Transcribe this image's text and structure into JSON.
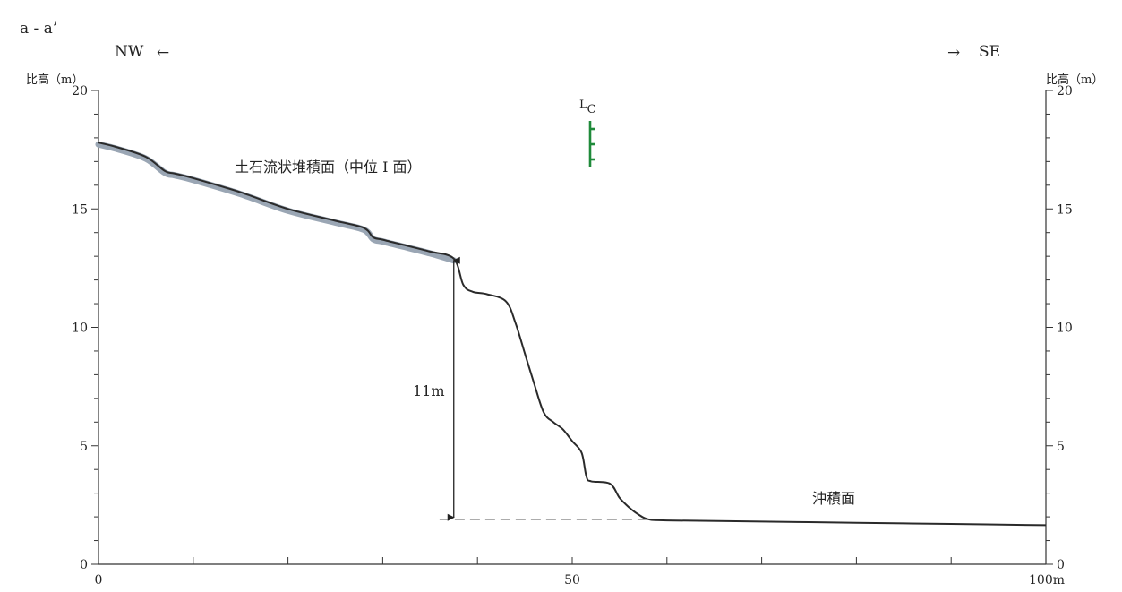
{
  "section_label": "a - a’",
  "direction": {
    "left": "NW",
    "right": "SE",
    "left_arrow": "←",
    "right_arrow": "→"
  },
  "axes": {
    "y_unit_left": "比高（m）",
    "y_unit_right": "比高（m）",
    "y_range": [
      0,
      20
    ],
    "y_ticks": [
      0,
      5,
      10,
      15,
      20
    ],
    "x_range": [
      0,
      100
    ],
    "x_tick_labels": [
      {
        "value": 0,
        "label": "0"
      },
      {
        "value": 50,
        "label": "50"
      },
      {
        "value": 100,
        "label": "100m"
      }
    ]
  },
  "labels": {
    "upper_surface": "土石流状堆積面（中位 I 面）",
    "lower_surface": "沖積面",
    "height_difference": "11m",
    "scarp_symbol": "Lc"
  },
  "colors": {
    "profile": "#2a2a2a",
    "upper_surface_band": "#9aa6b4",
    "scarp_marker": "#1f8a3a"
  },
  "chart_data": {
    "type": "line",
    "xlabel": "",
    "ylabel": "比高（m）",
    "xlim": [
      0,
      100
    ],
    "ylim": [
      0,
      20
    ],
    "grid": false,
    "x": [
      0,
      2,
      5,
      7,
      8,
      10,
      15,
      20,
      25,
      28,
      29,
      30,
      32,
      35,
      37.5,
      38.5,
      39.5,
      41,
      43,
      44,
      45,
      46,
      47,
      48,
      49,
      50,
      51,
      51.5,
      52,
      54,
      55,
      56,
      57,
      58,
      60,
      70,
      80,
      90,
      100
    ],
    "series": [
      {
        "values": [
          17.8,
          17.6,
          17.2,
          16.6,
          16.5,
          16.3,
          15.7,
          15.0,
          14.5,
          14.2,
          13.8,
          13.7,
          13.5,
          13.2,
          12.9,
          11.8,
          11.5,
          11.4,
          11.1,
          10.2,
          8.9,
          7.6,
          6.4,
          6.0,
          5.7,
          5.2,
          4.7,
          3.7,
          3.5,
          3.4,
          2.8,
          2.4,
          2.1,
          1.9,
          1.85,
          1.8,
          1.75,
          1.7,
          1.65
        ]
      }
    ],
    "annotations": [
      {
        "type": "dimension",
        "x": 37.5,
        "y_from": 1.9,
        "y_to": 12.9,
        "label": "11m"
      },
      {
        "type": "dashed-baseline",
        "x_from": 36,
        "x_to": 58,
        "y": 1.9
      }
    ]
  }
}
